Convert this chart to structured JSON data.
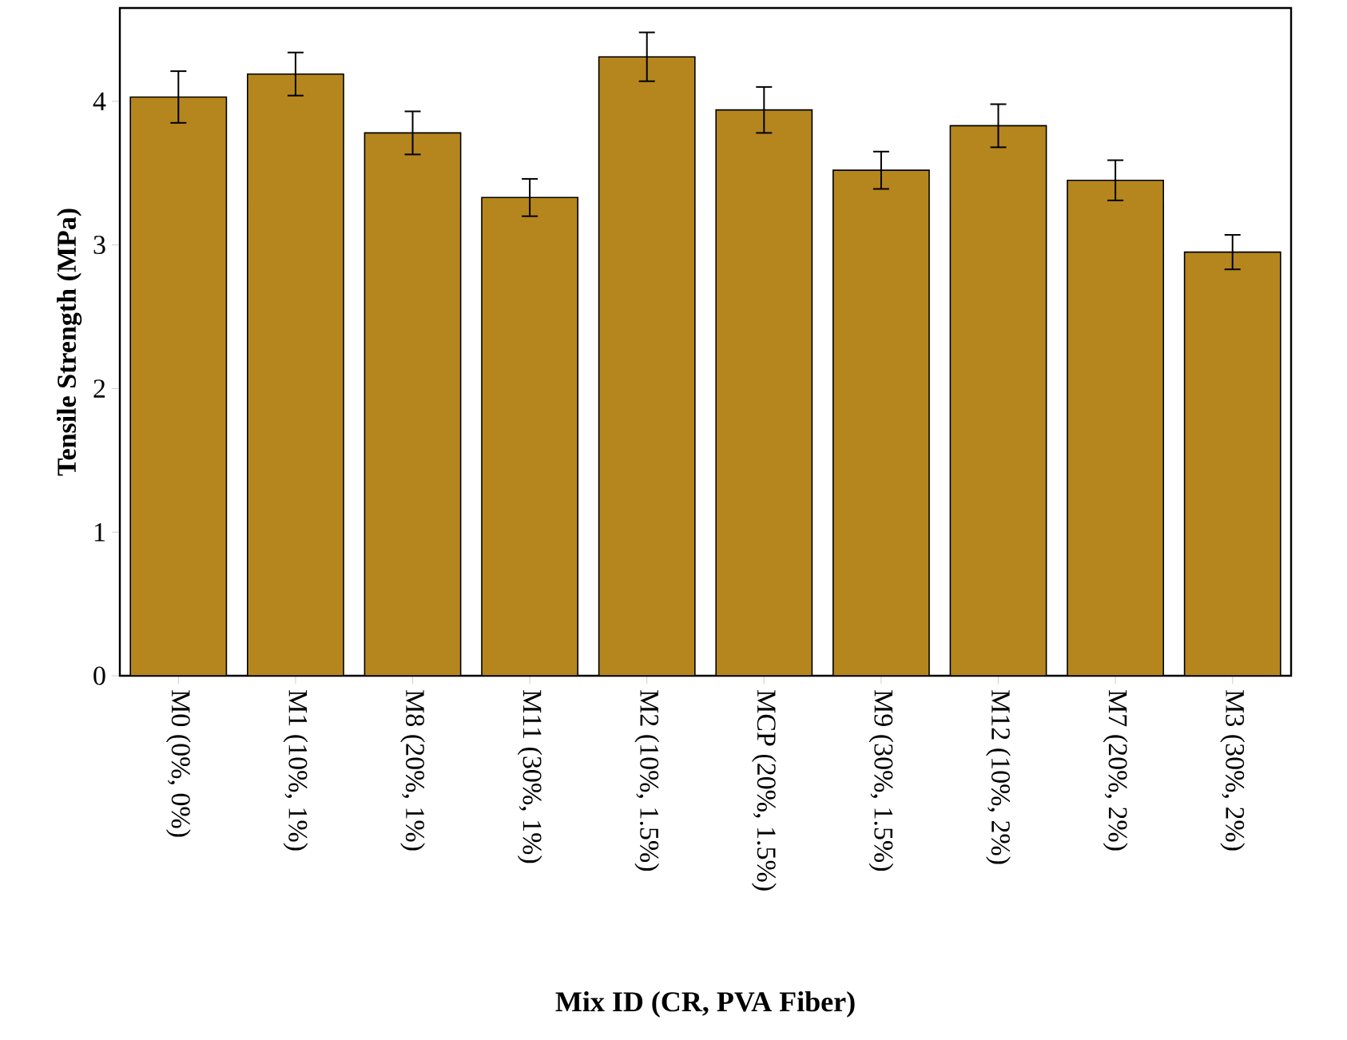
{
  "chart_data": {
    "type": "bar",
    "xlabel": "Mix ID (CR, PVA Fiber)",
    "ylabel": "Tensile Strength (MPa)",
    "categories": [
      "M0 (0%, 0%)",
      "M1 (10%, 1%)",
      "M8 (20%, 1%)",
      "M11 (30%, 1%)",
      "M2 (10%, 1.5%)",
      "MCP (20%, 1.5%)",
      "M9 (30%, 1.5%)",
      "M12 (10%, 2%)",
      "M7 (20%, 2%)",
      "M3 (30%, 2%)"
    ],
    "values": [
      4.03,
      4.19,
      3.78,
      3.33,
      4.31,
      3.94,
      3.52,
      3.83,
      3.45,
      2.95
    ],
    "errors": [
      0.18,
      0.15,
      0.15,
      0.13,
      0.17,
      0.16,
      0.13,
      0.15,
      0.14,
      0.12
    ],
    "color": "#b5861e",
    "ylim": [
      0,
      4.65
    ],
    "yticks": [
      0,
      1,
      2,
      3,
      4
    ],
    "grid": false
  }
}
